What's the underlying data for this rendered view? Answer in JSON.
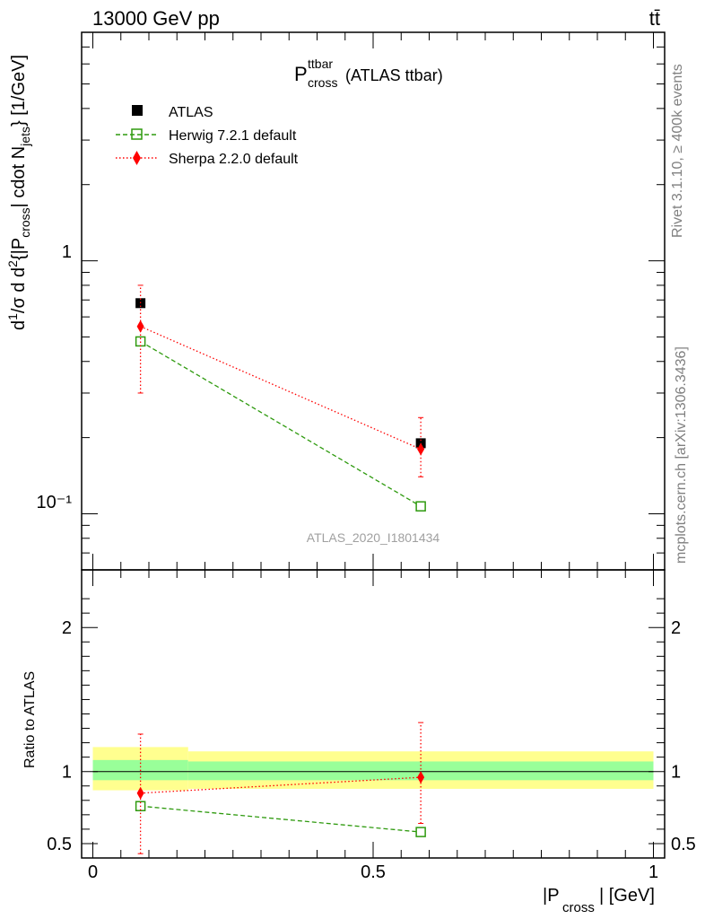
{
  "header": {
    "left": "13000 GeV pp",
    "right": "tt̄"
  },
  "side": {
    "rivet": "Rivet 3.1.10, ≥ 400k events",
    "mcplots": "mcplots.cern.ch [arXiv:1306.3436]"
  },
  "watermark": "ATLAS_2020_I1801434",
  "colors": {
    "atlas": "#000000",
    "herwig": "#2e9a0e",
    "sherpa": "#ff0000",
    "band_yellow": "#ffff8f",
    "band_green": "#99ff99"
  },
  "chart_data": [
    {
      "type": "scatter",
      "title_main": "P",
      "title_sup": "ttbar",
      "title_sub": "cross",
      "title_rest": "(ATLAS ttbar)",
      "ylabel": "d¹/σ d d²{|P_cross| cdot N_jets} [1/GeV]",
      "yscale": "log",
      "ylim": [
        0.06,
        8
      ],
      "xlim": [
        -0.02,
        1.02
      ],
      "ytick_labels": [
        "1",
        "10⁻¹"
      ],
      "legend_position": "top-left",
      "series": [
        {
          "name": "ATLAS",
          "marker": "filled-square",
          "x": [
            0.085,
            0.585
          ],
          "y": [
            0.68,
            0.19
          ],
          "yerr_lo": [
            0.68,
            0.19
          ],
          "yerr_hi": [
            0.68,
            0.19
          ]
        },
        {
          "name": "Herwig 7.2.1 default",
          "marker": "open-square",
          "line": "dashed",
          "x": [
            0.085,
            0.585
          ],
          "y": [
            0.48,
            0.107
          ],
          "yerr_lo": [
            0.47,
            0.104
          ],
          "yerr_hi": [
            0.49,
            0.11
          ]
        },
        {
          "name": "Sherpa 2.2.0 default",
          "marker": "diamond",
          "line": "dotted",
          "x": [
            0.085,
            0.585
          ],
          "y": [
            0.55,
            0.18
          ],
          "yerr_lo": [
            0.3,
            0.14
          ],
          "yerr_hi": [
            0.8,
            0.24
          ]
        }
      ]
    },
    {
      "type": "scatter",
      "ylabel": "Ratio to ATLAS",
      "xlabel_main": "|P",
      "xlabel_sub": "cross",
      "xlabel_rest": "| [GeV]",
      "ylim": [
        0.4,
        2.4
      ],
      "xlim": [
        -0.02,
        1.02
      ],
      "yticks": [
        0.5,
        1,
        2
      ],
      "ytick_labels": [
        "0.5",
        "1",
        "2"
      ],
      "xticks": [
        0,
        0.5,
        1
      ],
      "xtick_labels": [
        "0",
        "0.5",
        "1"
      ],
      "bands": [
        {
          "x0": 0.0,
          "x1": 0.17,
          "yellow": [
            0.87,
            1.17
          ],
          "green": [
            0.94,
            1.08
          ]
        },
        {
          "x0": 0.17,
          "x1": 1.0,
          "yellow": [
            0.88,
            1.14
          ],
          "green": [
            0.94,
            1.07
          ]
        }
      ],
      "series": [
        {
          "name": "Herwig 7.2.1 default",
          "x": [
            0.085,
            0.585
          ],
          "y": [
            0.76,
            0.58
          ],
          "yerr_lo": [
            0.74,
            0.56
          ],
          "yerr_hi": [
            0.78,
            0.6
          ]
        },
        {
          "name": "Sherpa 2.2.0 default",
          "x": [
            0.085,
            0.585
          ],
          "y": [
            0.85,
            0.96
          ],
          "yerr_lo": [
            0.43,
            0.64
          ],
          "yerr_hi": [
            1.26,
            1.34
          ]
        }
      ]
    }
  ]
}
